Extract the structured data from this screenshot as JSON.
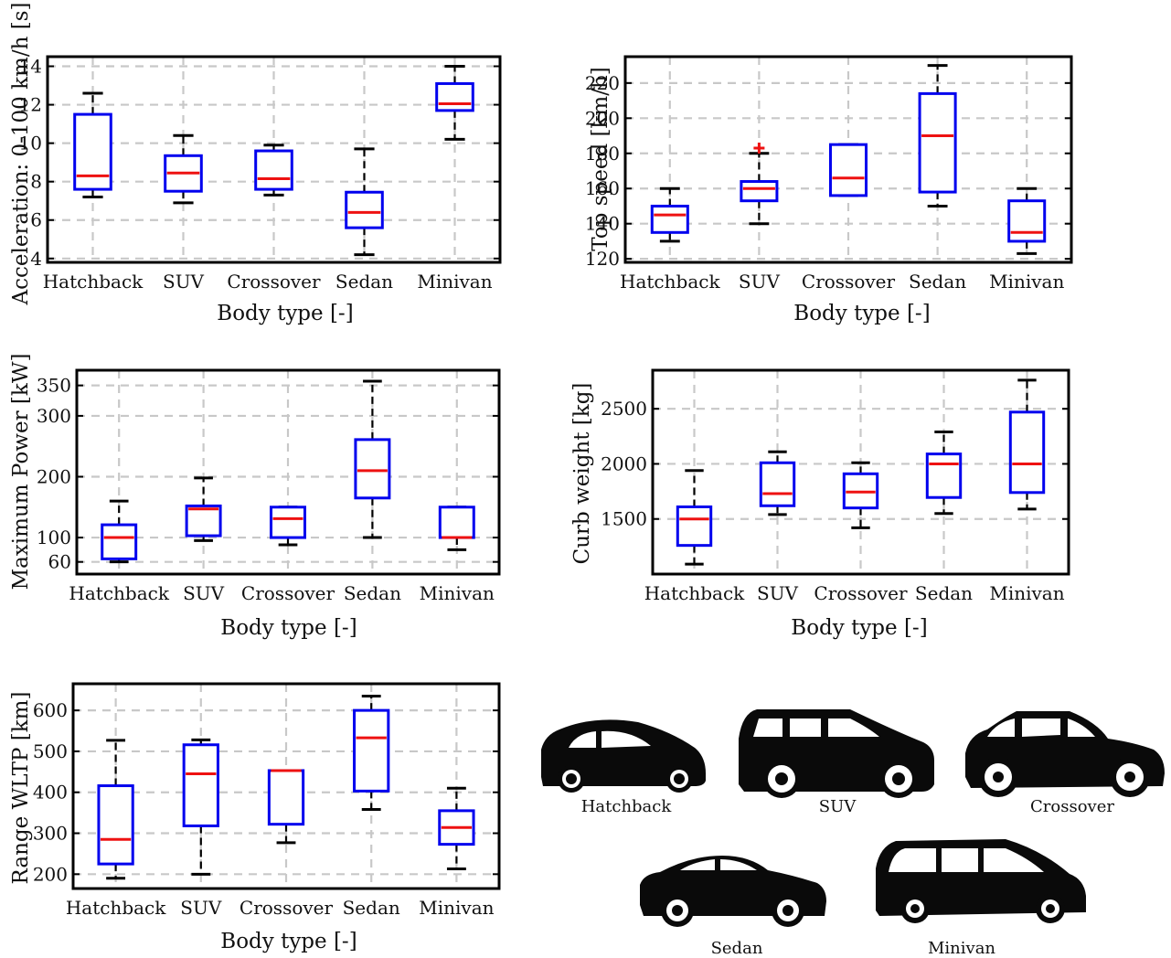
{
  "chart_data": [
    {
      "type": "box",
      "xlabel": "Body type [-]",
      "ylabel": "Acceleration: 0-100 km/h [s]",
      "categories": [
        "Hatchback",
        "SUV",
        "Crossover",
        "Sedan",
        "Minivan"
      ],
      "ylim": [
        3.8,
        14.5
      ],
      "yticks": [
        4,
        6,
        8,
        10,
        12,
        14
      ],
      "grid": true,
      "boxes": [
        {
          "whislo": 7.2,
          "q1": 7.6,
          "med": 8.3,
          "q3": 11.5,
          "whishi": 12.6,
          "fliers": []
        },
        {
          "whislo": 6.9,
          "q1": 7.5,
          "med": 8.45,
          "q3": 9.35,
          "whishi": 10.4,
          "fliers": []
        },
        {
          "whislo": 7.3,
          "q1": 7.6,
          "med": 8.15,
          "q3": 9.6,
          "whishi": 9.9,
          "fliers": []
        },
        {
          "whislo": 4.2,
          "q1": 5.6,
          "med": 6.4,
          "q3": 7.45,
          "whishi": 9.7,
          "fliers": []
        },
        {
          "whislo": 10.2,
          "q1": 11.7,
          "med": 12.05,
          "q3": 13.1,
          "whishi": 14.0,
          "fliers": []
        }
      ]
    },
    {
      "type": "box",
      "xlabel": "Body type [-]",
      "ylabel": "Top speed [km/h]",
      "categories": [
        "Hatchback",
        "SUV",
        "Crossover",
        "Sedan",
        "Minivan"
      ],
      "ylim": [
        118,
        235
      ],
      "yticks": [
        120,
        140,
        160,
        180,
        200,
        220
      ],
      "grid": true,
      "boxes": [
        {
          "whislo": 130,
          "q1": 135,
          "med": 145,
          "q3": 150,
          "whishi": 160,
          "fliers": []
        },
        {
          "whislo": 140,
          "q1": 153,
          "med": 160,
          "q3": 164,
          "whishi": 180,
          "fliers": [
            183
          ]
        },
        {
          "whislo": 156,
          "q1": 156,
          "med": 166,
          "q3": 185,
          "whishi": 185,
          "fliers": []
        },
        {
          "whislo": 150,
          "q1": 158,
          "med": 190,
          "q3": 214,
          "whishi": 230,
          "fliers": []
        },
        {
          "whislo": 123,
          "q1": 130,
          "med": 135,
          "q3": 153,
          "whishi": 160,
          "fliers": []
        }
      ]
    },
    {
      "type": "box",
      "xlabel": "Body type [-]",
      "ylabel": "Maximum Power [kW]",
      "categories": [
        "Hatchback",
        "SUV",
        "Crossover",
        "Sedan",
        "Minivan"
      ],
      "ylim": [
        40,
        375
      ],
      "yticks": [
        60,
        100,
        200,
        300,
        350
      ],
      "grid": true,
      "boxes": [
        {
          "whislo": 60,
          "q1": 65,
          "med": 100,
          "q3": 121,
          "whishi": 160,
          "fliers": []
        },
        {
          "whislo": 95,
          "q1": 103,
          "med": 147,
          "q3": 152,
          "whishi": 198,
          "fliers": []
        },
        {
          "whislo": 88,
          "q1": 100,
          "med": 131,
          "q3": 150,
          "whishi": 150,
          "fliers": []
        },
        {
          "whislo": 100,
          "q1": 165,
          "med": 210,
          "q3": 261,
          "whishi": 357,
          "fliers": []
        },
        {
          "whislo": 80,
          "q1": 100,
          "med": 100,
          "q3": 150,
          "whishi": 150,
          "fliers": []
        }
      ]
    },
    {
      "type": "box",
      "xlabel": "",
      "ylabel": "Curb weight [kg]",
      "categories": [
        "Hatchback",
        "SUV",
        "Crossover",
        "Sedan",
        "Minivan"
      ],
      "ylim": [
        1000,
        2850
      ],
      "yticks": [
        1500,
        2000,
        2500
      ],
      "grid": true,
      "boxes": [
        {
          "whislo": 1090,
          "q1": 1260,
          "med": 1500,
          "q3": 1610,
          "whishi": 1940,
          "fliers": []
        },
        {
          "whislo": 1540,
          "q1": 1620,
          "med": 1730,
          "q3": 2010,
          "whishi": 2110,
          "fliers": []
        },
        {
          "whislo": 1420,
          "q1": 1600,
          "med": 1745,
          "q3": 1910,
          "whishi": 2010,
          "fliers": []
        },
        {
          "whislo": 1550,
          "q1": 1695,
          "med": 2000,
          "q3": 2090,
          "whishi": 2290,
          "fliers": []
        },
        {
          "whislo": 1590,
          "q1": 1740,
          "med": 2000,
          "q3": 2470,
          "whishi": 2760,
          "fliers": []
        }
      ]
    },
    {
      "type": "box",
      "xlabel": "Body type [-]",
      "ylabel": "Range WLTP [km]",
      "categories": [
        "Hatchback",
        "SUV",
        "Crossover",
        "Sedan",
        "Minivan"
      ],
      "ylim": [
        165,
        665
      ],
      "yticks": [
        200,
        300,
        400,
        500,
        600
      ],
      "grid": true,
      "boxes": [
        {
          "whislo": 190,
          "q1": 225,
          "med": 285,
          "q3": 416,
          "whishi": 527,
          "fliers": []
        },
        {
          "whislo": 200,
          "q1": 318,
          "med": 445,
          "q3": 516,
          "whishi": 528,
          "fliers": []
        },
        {
          "whislo": 277,
          "q1": 322,
          "med": 453,
          "q3": 453,
          "whishi": 453,
          "fliers": []
        },
        {
          "whislo": 358,
          "q1": 403,
          "med": 533,
          "q3": 600,
          "whishi": 635,
          "fliers": []
        },
        {
          "whislo": 213,
          "q1": 273,
          "med": 314,
          "q3": 355,
          "whishi": 410,
          "fliers": []
        }
      ]
    }
  ],
  "cars": {
    "hatchback": "Hatchback",
    "suv": "SUV",
    "crossover": "Crossover",
    "sedan": "Sedan",
    "minivan": "Minivan"
  },
  "colors": {
    "box": "#0000ee",
    "median": "#ee1111",
    "whisker": "#000000",
    "grid": "#c8c8c8",
    "car": "#0a0a0a"
  }
}
